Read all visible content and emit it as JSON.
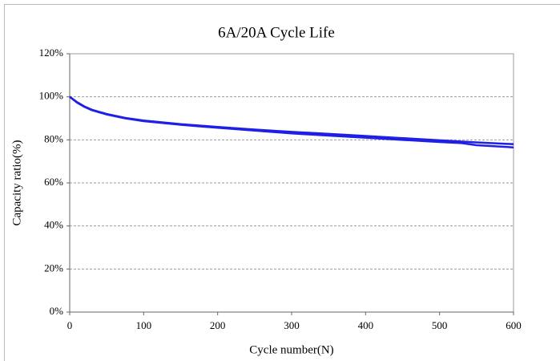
{
  "chart_data": {
    "type": "line",
    "title": "6A/20A Cycle Life",
    "xlabel": "Cycle number(N)",
    "ylabel": "Capacity ratio(%)",
    "x": [
      0,
      10,
      20,
      30,
      50,
      75,
      100,
      150,
      200,
      250,
      300,
      350,
      400,
      450,
      500,
      530,
      550,
      600
    ],
    "series": [
      {
        "color": "#1f1fe6",
        "values": [
          100,
          97.5,
          95.5,
          94,
          92,
          90.2,
          89,
          87.3,
          86,
          84.8,
          83.7,
          82.8,
          81.8,
          80.8,
          79.8,
          79.2,
          78.8,
          78
        ]
      },
      {
        "color": "#1f1fe6",
        "values": [
          100,
          97.3,
          95.3,
          93.8,
          91.8,
          90,
          88.7,
          87,
          85.6,
          84.3,
          83,
          82,
          81,
          80,
          79,
          78.5,
          77.5,
          76.5
        ]
      }
    ],
    "xlim": [
      0,
      600
    ],
    "xticks": [
      0,
      100,
      200,
      300,
      400,
      500,
      600
    ],
    "ylim": [
      0,
      120
    ],
    "yticks": [
      {
        "value": 0,
        "label": "0%"
      },
      {
        "value": 20,
        "label": "20%"
      },
      {
        "value": 40,
        "label": "40%"
      },
      {
        "value": 60,
        "label": "60%"
      },
      {
        "value": 80,
        "label": "80%"
      },
      {
        "value": 100,
        "label": "100%"
      },
      {
        "value": 120,
        "label": "120%"
      }
    ],
    "grid": true
  }
}
